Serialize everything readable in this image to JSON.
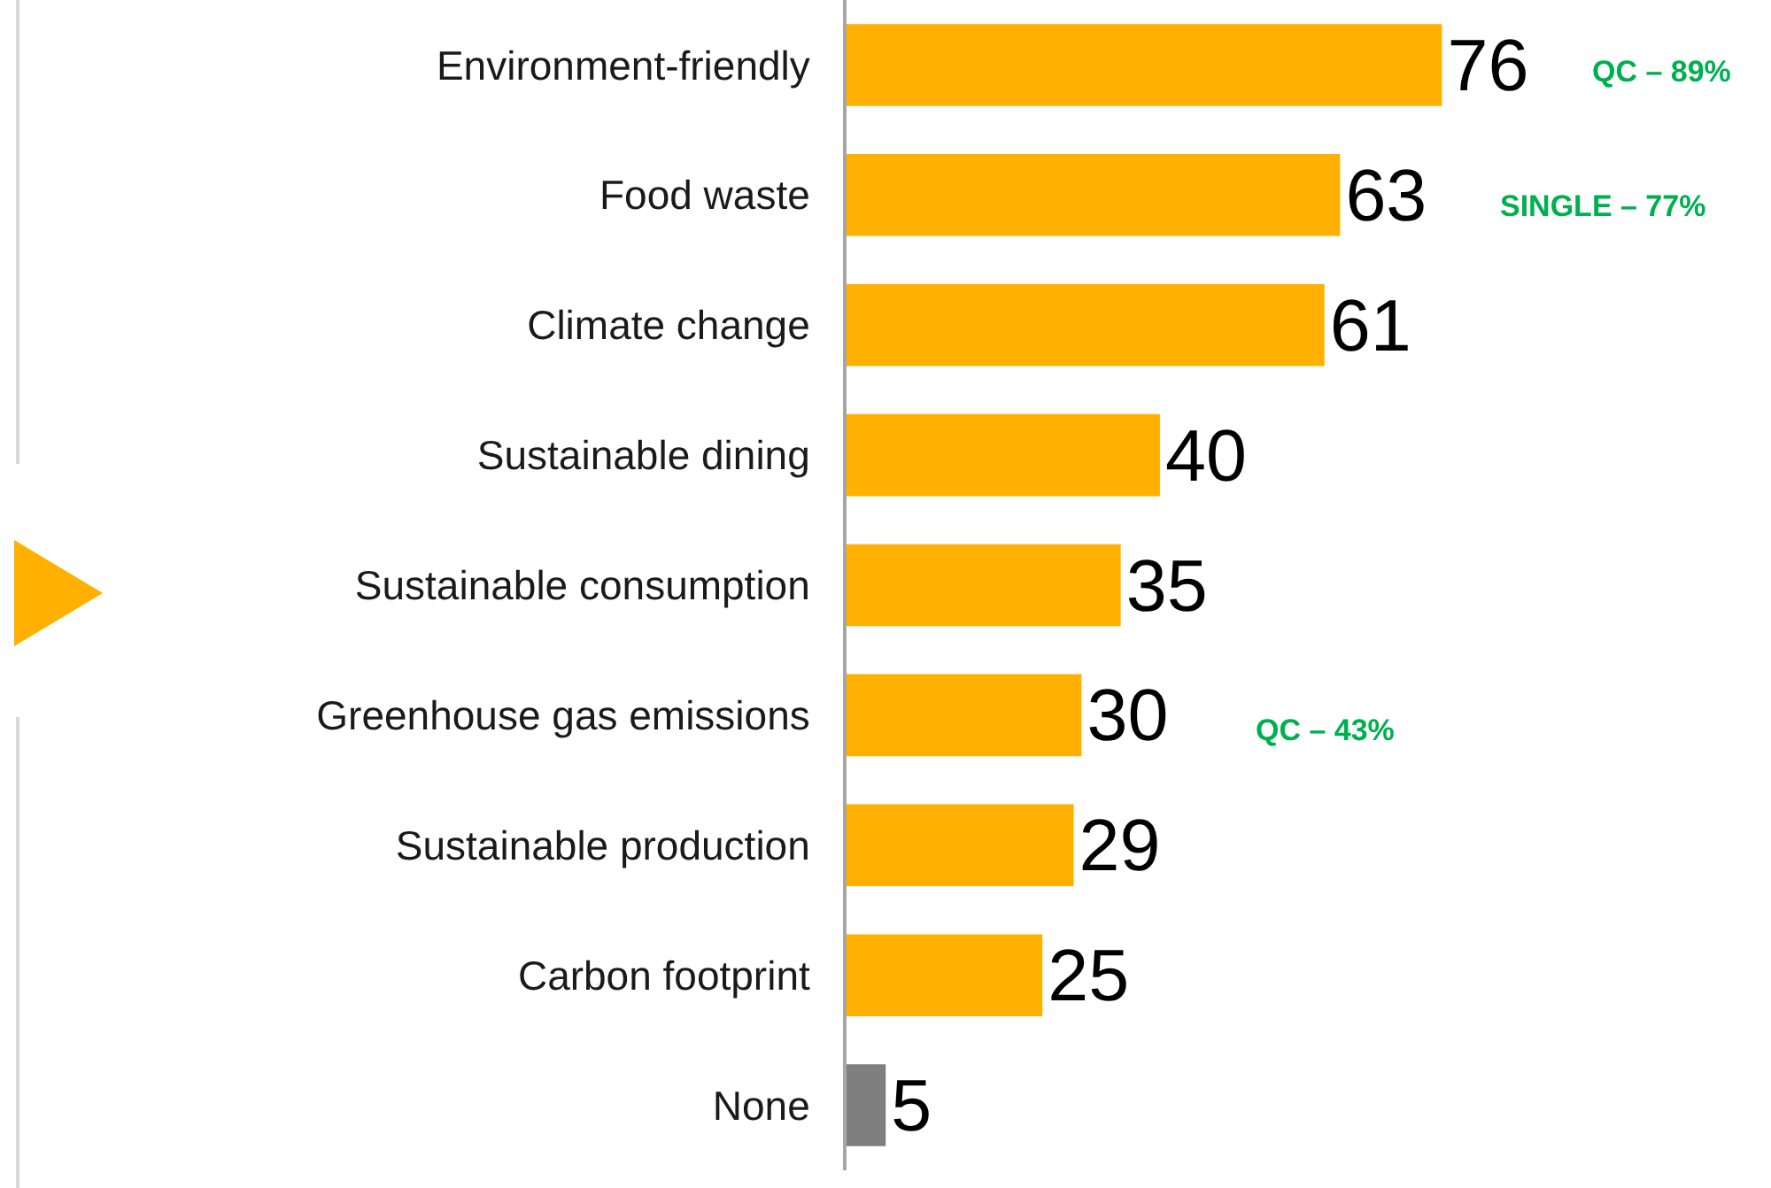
{
  "chart_data": {
    "type": "bar",
    "orientation": "horizontal",
    "categories": [
      "Environment-friendly",
      "Food waste",
      "Climate change",
      "Sustainable dining",
      "Sustainable consumption",
      "Greenhouse gas emissions",
      "Sustainable production",
      "Carbon footprint",
      "None"
    ],
    "values": [
      76,
      63,
      61,
      40,
      35,
      30,
      29,
      25,
      5
    ],
    "colors": [
      "#ffb000",
      "#ffb000",
      "#ffb000",
      "#ffb000",
      "#ffb000",
      "#ffb000",
      "#ffb000",
      "#ffb000",
      "#7f7f7f"
    ],
    "xlim": [
      0,
      118
    ],
    "data_labels": true,
    "grid": false,
    "legend": false,
    "tick_labels": "y",
    "annotations": [
      "QC – 89%",
      "SINGLE – 77%",
      "QC – 43%"
    ]
  }
}
